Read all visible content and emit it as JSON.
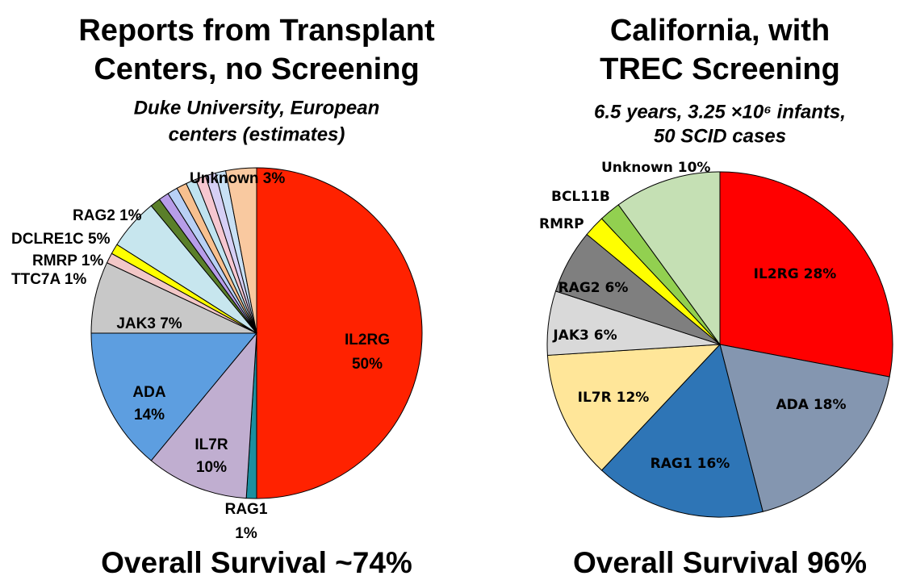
{
  "chart_data": [
    {
      "type": "pie",
      "title": [
        "Reports from Transplant",
        "Centers, no Screening"
      ],
      "subtitle": [
        "Duke University, European",
        "centers (estimates)"
      ],
      "annotation": "Overall Survival ~74%",
      "categories": [
        "IL2RG",
        "RAG1",
        "IL7R",
        "ADA",
        "JAK3",
        "TTC7A",
        "RMRP",
        "DCLRE1C",
        "RAG2",
        null,
        null,
        null,
        null,
        null,
        null,
        null,
        "Unknown"
      ],
      "values": [
        50,
        1,
        10,
        14,
        7,
        1,
        1,
        5,
        1,
        1,
        1,
        1,
        1,
        1,
        1,
        1,
        3
      ],
      "value_labels": [
        "50%",
        "1%",
        "10%",
        "14%",
        "7%",
        "1%",
        "1%",
        "5%",
        "1%",
        null,
        null,
        null,
        null,
        null,
        null,
        null,
        "3%"
      ],
      "colors": [
        "#ff2200",
        "#1b8fa0",
        "#c0aed0",
        "#5d9ee0",
        "#c8c8c8",
        "#f2c7c7",
        "#ffff00",
        "#c7e6ee",
        "#5a7f2a",
        "#b79de8",
        "#b8d0f5",
        "#f7c08f",
        "#bfe3f0",
        "#f6c7d0",
        "#d6cff5",
        "#c8e0f5",
        "#f9c9a0"
      ]
    },
    {
      "type": "pie",
      "title": [
        "California, with",
        "TREC Screening"
      ],
      "subtitle": [
        "6.5 years, 3.25 ×10⁶ infants,",
        "50 SCID cases"
      ],
      "annotation": "Overall Survival 96%",
      "categories": [
        "IL2RG",
        "ADA",
        "RAG1",
        "IL7R",
        "JAK3",
        "RAG2",
        "RMRP",
        "BCL11B",
        "Unknown"
      ],
      "values": [
        28,
        18,
        16,
        12,
        6,
        6,
        2,
        2,
        10
      ],
      "value_labels": [
        "28%",
        "18%",
        "16%",
        "12%",
        "6%",
        "6%",
        null,
        null,
        "10%"
      ],
      "colors": [
        "#ff0000",
        "#8496b0",
        "#2e75b6",
        "#ffe699",
        "#d9d9d9",
        "#7f7f7f",
        "#ffff00",
        "#92d050",
        "#c5e0b4"
      ]
    }
  ]
}
